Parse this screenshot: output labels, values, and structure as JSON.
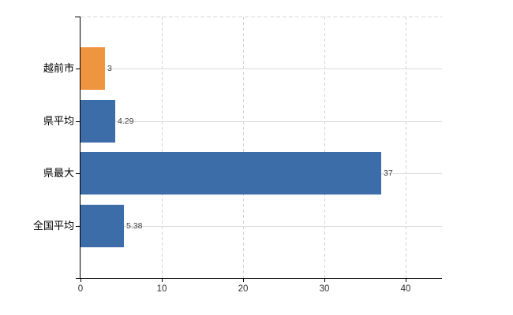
{
  "chart_data": {
    "type": "bar",
    "orientation": "horizontal",
    "title": "",
    "xlabel": "",
    "ylabel": "",
    "categories": [
      "越前市",
      "県平均",
      "県最大",
      "全国平均"
    ],
    "values": [
      3,
      4.29,
      37,
      5.38
    ],
    "value_labels": [
      "3",
      "4.29",
      "37",
      "5.38"
    ],
    "bar_colors": [
      "#ef953f",
      "#3c6da8",
      "#3c6da8",
      "#3c6da8"
    ],
    "x_axis": {
      "ticks": [
        0,
        10,
        20,
        30,
        40
      ],
      "tick_labels": [
        "0",
        "10",
        "20",
        "30",
        "40"
      ],
      "range": [
        0,
        44.5
      ]
    },
    "grid": {
      "vertical": true,
      "horizontal": true
    },
    "legend": "none"
  },
  "colors": {
    "background": "#ffffff",
    "bar_orange": "#ef953f",
    "bar_blue": "#3c6da8",
    "axis": "#000000",
    "grid_vertical": "#d2d2dc",
    "grid_horizontal": "#d6ddd6",
    "top_border": "#d8d8d8",
    "value_label": "#404040",
    "tick_label": "#303030",
    "category_label": "#000000"
  }
}
